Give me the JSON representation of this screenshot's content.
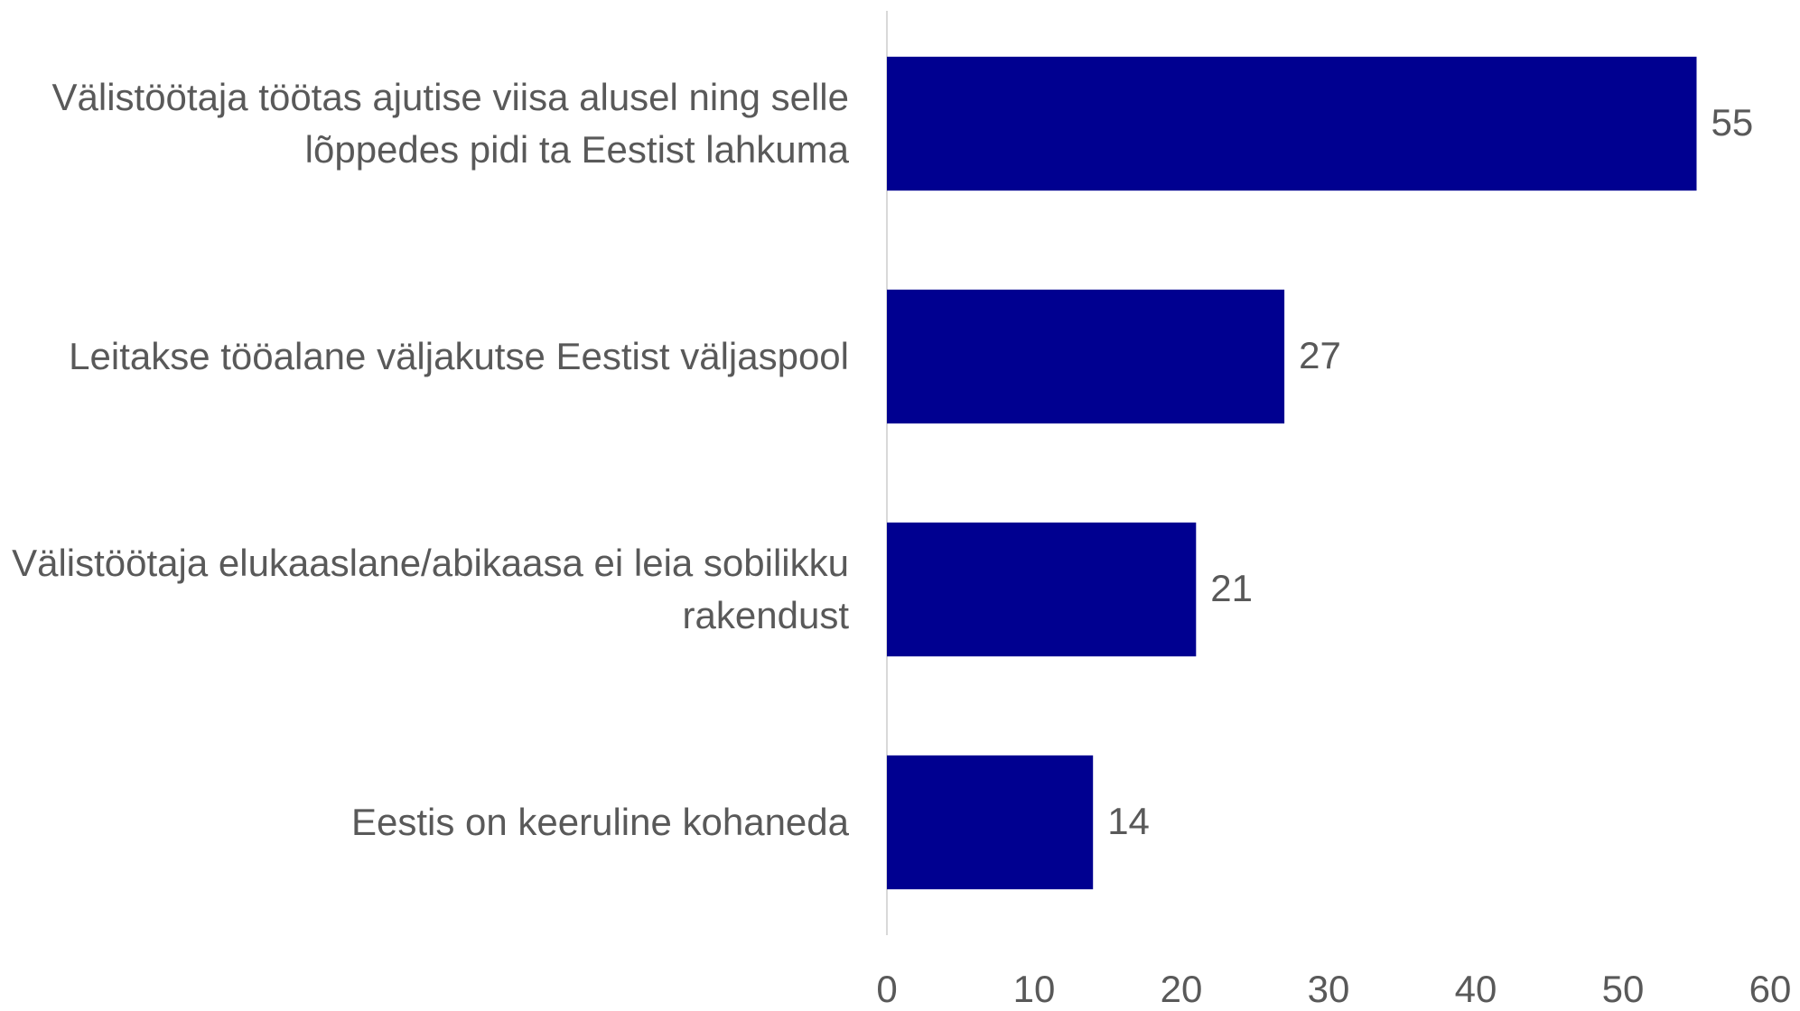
{
  "chart_data": {
    "type": "bar",
    "orientation": "horizontal",
    "categories": [
      "Välistöötaja töötas ajutise viisa alusel ning selle lõppedes pidi ta Eestist lahkuma",
      "Leitakse tööalane väljakutse Eestist väljaspool",
      "Välistöötaja elukaaslane/abikaasa ei leia sobilikku rakendust",
      "Eestis on keeruline kohaneda"
    ],
    "values": [
      55,
      27,
      21,
      14
    ],
    "color": "#000090",
    "xlim": [
      0,
      60
    ],
    "xticks": [
      0,
      10,
      20,
      30,
      40,
      50,
      60
    ],
    "grid": false
  }
}
